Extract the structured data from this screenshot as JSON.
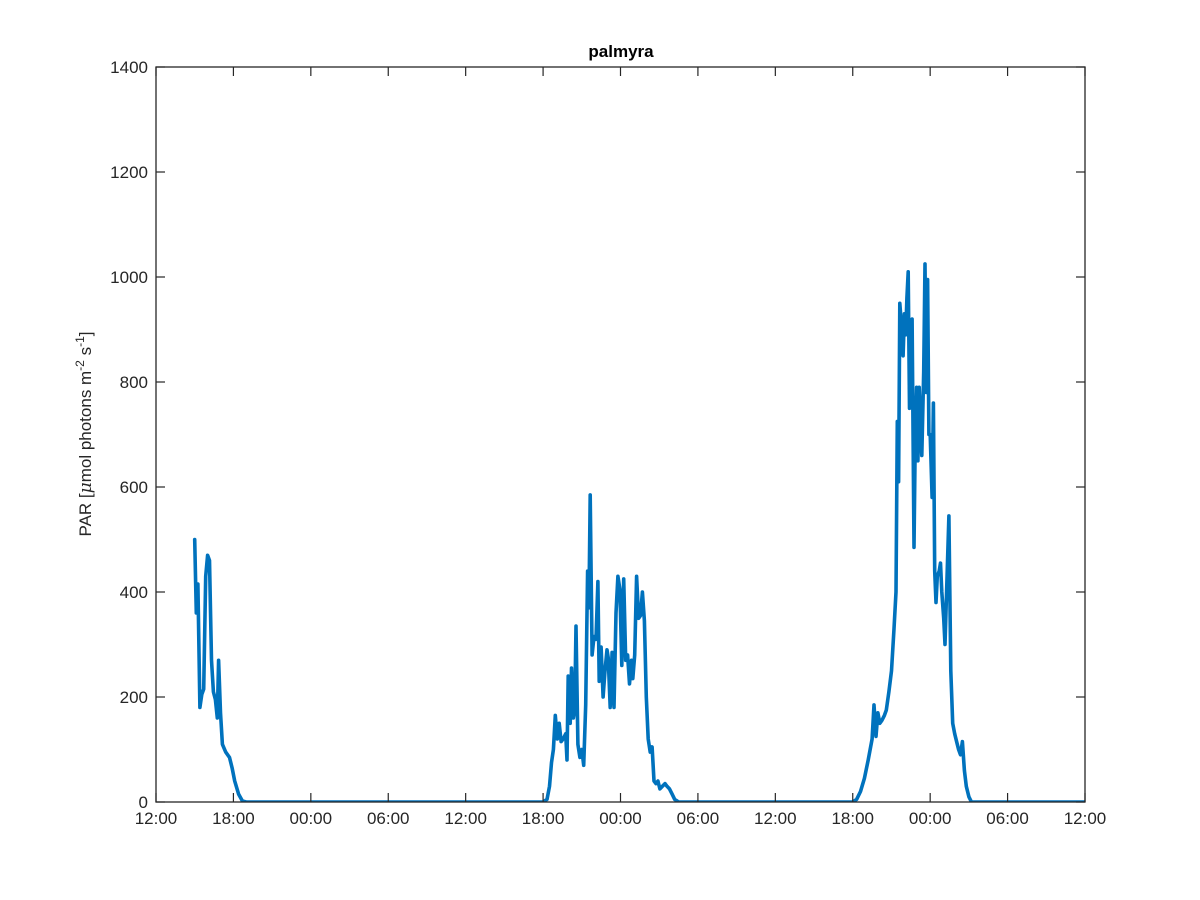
{
  "chart_data": {
    "type": "line",
    "title": "palmyra",
    "xlabel": "",
    "ylabel": "PAR [μmol photons m-2 s-1]",
    "ylabel_parts": {
      "pre": "PAR [",
      "mu": "μ",
      "mid": "mol photons m",
      "sup1": "-2",
      "mid2": " s",
      "sup2": "-1",
      "post": "]"
    },
    "xlim": [
      0,
      72
    ],
    "ylim": [
      0,
      1400
    ],
    "x_unit": "hours from first 12:00 tick",
    "x_ticks": [
      0,
      6,
      12,
      18,
      24,
      30,
      36,
      42,
      48,
      54,
      60,
      66,
      72
    ],
    "x_tick_labels": [
      "12:00",
      "18:00",
      "00:00",
      "06:00",
      "12:00",
      "18:00",
      "00:00",
      "06:00",
      "12:00",
      "18:00",
      "00:00",
      "06:00",
      "12:00"
    ],
    "y_ticks": [
      0,
      200,
      400,
      600,
      800,
      1000,
      1200,
      1400
    ],
    "y_tick_labels": [
      "0",
      "200",
      "400",
      "600",
      "800",
      "1000",
      "1200",
      "1400"
    ],
    "grid": false,
    "series": [
      {
        "color": "#0072bd",
        "points": [
          [
            3.0,
            500
          ],
          [
            3.12,
            360
          ],
          [
            3.25,
            415
          ],
          [
            3.4,
            180
          ],
          [
            3.55,
            205
          ],
          [
            3.7,
            215
          ],
          [
            3.85,
            430
          ],
          [
            4.0,
            470
          ],
          [
            4.15,
            460
          ],
          [
            4.3,
            270
          ],
          [
            4.45,
            210
          ],
          [
            4.6,
            195
          ],
          [
            4.75,
            160
          ],
          [
            4.85,
            270
          ],
          [
            5.0,
            170
          ],
          [
            5.15,
            110
          ],
          [
            5.4,
            95
          ],
          [
            5.7,
            85
          ],
          [
            5.9,
            65
          ],
          [
            6.1,
            40
          ],
          [
            6.4,
            15
          ],
          [
            6.7,
            2
          ],
          [
            7.0,
            0
          ],
          [
            23.0,
            0
          ],
          [
            29.0,
            0
          ],
          [
            30.0,
            0
          ],
          [
            30.3,
            5
          ],
          [
            30.5,
            30
          ],
          [
            30.65,
            75
          ],
          [
            30.8,
            100
          ],
          [
            30.95,
            165
          ],
          [
            31.1,
            120
          ],
          [
            31.25,
            150
          ],
          [
            31.4,
            115
          ],
          [
            31.55,
            120
          ],
          [
            31.75,
            130
          ],
          [
            31.85,
            80
          ],
          [
            31.95,
            240
          ],
          [
            32.1,
            150
          ],
          [
            32.2,
            255
          ],
          [
            32.35,
            160
          ],
          [
            32.45,
            175
          ],
          [
            32.55,
            335
          ],
          [
            32.7,
            110
          ],
          [
            32.85,
            85
          ],
          [
            33.0,
            100
          ],
          [
            33.15,
            70
          ],
          [
            33.3,
            185
          ],
          [
            33.45,
            440
          ],
          [
            33.55,
            370
          ],
          [
            33.65,
            585
          ],
          [
            33.8,
            280
          ],
          [
            33.95,
            315
          ],
          [
            34.1,
            310
          ],
          [
            34.25,
            420
          ],
          [
            34.35,
            230
          ],
          [
            34.5,
            295
          ],
          [
            34.65,
            200
          ],
          [
            34.8,
            250
          ],
          [
            34.95,
            290
          ],
          [
            35.05,
            275
          ],
          [
            35.2,
            180
          ],
          [
            35.35,
            285
          ],
          [
            35.5,
            180
          ],
          [
            35.65,
            360
          ],
          [
            35.8,
            430
          ],
          [
            35.95,
            405
          ],
          [
            36.1,
            260
          ],
          [
            36.25,
            425
          ],
          [
            36.4,
            270
          ],
          [
            36.55,
            280
          ],
          [
            36.7,
            225
          ],
          [
            36.85,
            270
          ],
          [
            36.95,
            235
          ],
          [
            37.1,
            280
          ],
          [
            37.25,
            430
          ],
          [
            37.4,
            350
          ],
          [
            37.55,
            355
          ],
          [
            37.7,
            400
          ],
          [
            37.85,
            345
          ],
          [
            38.0,
            200
          ],
          [
            38.15,
            120
          ],
          [
            38.3,
            95
          ],
          [
            38.45,
            105
          ],
          [
            38.6,
            40
          ],
          [
            38.75,
            35
          ],
          [
            38.9,
            40
          ],
          [
            39.05,
            25
          ],
          [
            39.25,
            30
          ],
          [
            39.45,
            35
          ],
          [
            39.6,
            30
          ],
          [
            39.8,
            25
          ],
          [
            40.0,
            15
          ],
          [
            40.2,
            5
          ],
          [
            40.5,
            0
          ],
          [
            54.0,
            0
          ],
          [
            54.3,
            5
          ],
          [
            54.6,
            20
          ],
          [
            54.9,
            45
          ],
          [
            55.2,
            80
          ],
          [
            55.5,
            120
          ],
          [
            55.65,
            185
          ],
          [
            55.8,
            125
          ],
          [
            55.95,
            170
          ],
          [
            56.1,
            150
          ],
          [
            56.25,
            155
          ],
          [
            56.45,
            165
          ],
          [
            56.6,
            175
          ],
          [
            56.8,
            210
          ],
          [
            57.0,
            250
          ],
          [
            57.2,
            330
          ],
          [
            57.35,
            400
          ],
          [
            57.45,
            725
          ],
          [
            57.55,
            610
          ],
          [
            57.65,
            950
          ],
          [
            57.8,
            900
          ],
          [
            57.9,
            850
          ],
          [
            58.0,
            930
          ],
          [
            58.1,
            890
          ],
          [
            58.2,
            960
          ],
          [
            58.3,
            1010
          ],
          [
            58.4,
            750
          ],
          [
            58.5,
            800
          ],
          [
            58.6,
            920
          ],
          [
            58.75,
            485
          ],
          [
            58.85,
            700
          ],
          [
            58.95,
            790
          ],
          [
            59.05,
            650
          ],
          [
            59.15,
            790
          ],
          [
            59.25,
            720
          ],
          [
            59.35,
            660
          ],
          [
            59.5,
            820
          ],
          [
            59.6,
            1025
          ],
          [
            59.7,
            780
          ],
          [
            59.8,
            995
          ],
          [
            59.9,
            700
          ],
          [
            60.0,
            700
          ],
          [
            60.15,
            580
          ],
          [
            60.25,
            760
          ],
          [
            60.35,
            440
          ],
          [
            60.45,
            380
          ],
          [
            60.55,
            430
          ],
          [
            60.7,
            440
          ],
          [
            60.8,
            455
          ],
          [
            60.9,
            400
          ],
          [
            61.05,
            350
          ],
          [
            61.15,
            300
          ],
          [
            61.3,
            420
          ],
          [
            61.45,
            545
          ],
          [
            61.6,
            250
          ],
          [
            61.75,
            150
          ],
          [
            61.9,
            130
          ],
          [
            62.05,
            115
          ],
          [
            62.2,
            100
          ],
          [
            62.35,
            90
          ],
          [
            62.5,
            115
          ],
          [
            62.65,
            60
          ],
          [
            62.8,
            30
          ],
          [
            63.0,
            10
          ],
          [
            63.2,
            0
          ],
          [
            78.0,
            0
          ]
        ]
      }
    ]
  }
}
